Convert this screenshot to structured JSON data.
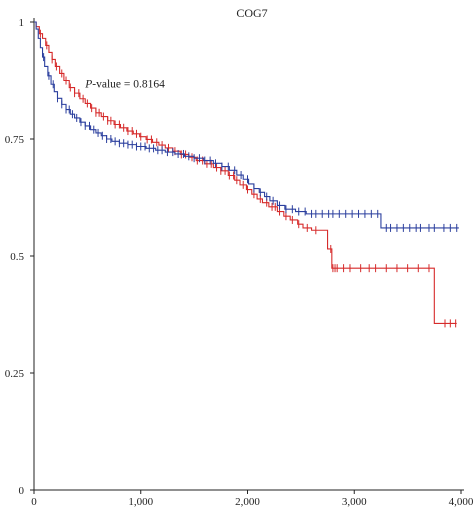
{
  "chart_data": {
    "type": "line",
    "chart_kind": "kaplan-meier survival curve",
    "title": "COG7",
    "xlabel": "",
    "ylabel": "",
    "xlim": [
      0,
      4000
    ],
    "ylim": [
      0,
      1
    ],
    "x_ticks": [
      0,
      1000,
      2000,
      3000,
      4000
    ],
    "x_tick_labels": [
      "0",
      "1,000",
      "2,000",
      "3,000",
      "4,000"
    ],
    "y_ticks": [
      0,
      0.25,
      0.5,
      0.75,
      1
    ],
    "y_tick_labels": [
      "0",
      "0.25",
      "0.5",
      "0.75",
      "1"
    ],
    "grid": false,
    "legend": "none",
    "annotation": {
      "italic": "P",
      "text": "-value = 0.8164",
      "at": [
        480,
        0.86
      ]
    },
    "series": [
      {
        "color": "#d62a2a",
        "step_points": [
          [
            0,
            1.0
          ],
          [
            20,
            0.99
          ],
          [
            50,
            0.975
          ],
          [
            80,
            0.965
          ],
          [
            110,
            0.95
          ],
          [
            140,
            0.935
          ],
          [
            170,
            0.92
          ],
          [
            200,
            0.905
          ],
          [
            240,
            0.89
          ],
          [
            280,
            0.875
          ],
          [
            330,
            0.86
          ],
          [
            380,
            0.848
          ],
          [
            430,
            0.836
          ],
          [
            480,
            0.826
          ],
          [
            530,
            0.816
          ],
          [
            580,
            0.806
          ],
          [
            630,
            0.798
          ],
          [
            690,
            0.789
          ],
          [
            750,
            0.781
          ],
          [
            810,
            0.774
          ],
          [
            870,
            0.767
          ],
          [
            930,
            0.761
          ],
          [
            990,
            0.755
          ],
          [
            1050,
            0.749
          ],
          [
            1110,
            0.743
          ],
          [
            1170,
            0.737
          ],
          [
            1230,
            0.731
          ],
          [
            1300,
            0.724
          ],
          [
            1370,
            0.717
          ],
          [
            1450,
            0.711
          ],
          [
            1520,
            0.704
          ],
          [
            1600,
            0.697
          ],
          [
            1680,
            0.689
          ],
          [
            1750,
            0.682
          ],
          [
            1820,
            0.672
          ],
          [
            1880,
            0.662
          ],
          [
            1930,
            0.652
          ],
          [
            1990,
            0.642
          ],
          [
            2040,
            0.632
          ],
          [
            2090,
            0.622
          ],
          [
            2140,
            0.614
          ],
          [
            2200,
            0.605
          ],
          [
            2280,
            0.595
          ],
          [
            2340,
            0.585
          ],
          [
            2400,
            0.577
          ],
          [
            2470,
            0.568
          ],
          [
            2520,
            0.56
          ],
          [
            2600,
            0.555
          ],
          [
            2700,
            0.555
          ],
          [
            2750,
            0.515
          ],
          [
            2790,
            0.474
          ],
          [
            3000,
            0.474
          ],
          [
            3750,
            0.474
          ],
          [
            3750,
            0.356
          ],
          [
            3960,
            0.356
          ]
        ],
        "censor_x": [
          60,
          120,
          170,
          210,
          260,
          300,
          340,
          380,
          420,
          460,
          500,
          540,
          580,
          610,
          650,
          690,
          720,
          760,
          800,
          840,
          880,
          920,
          960,
          1000,
          1060,
          1100,
          1150,
          1200,
          1260,
          1320,
          1380,
          1420,
          1480,
          1530,
          1580,
          1620,
          1660,
          1710,
          1750,
          1790,
          1830,
          1870,
          1900,
          1960,
          2000,
          2060,
          2120,
          2180,
          2230,
          2260,
          2300,
          2360,
          2420,
          2480,
          2560,
          2640,
          2780,
          2800,
          2820,
          2840,
          2900,
          2960,
          3060,
          3140,
          3200,
          3300,
          3400,
          3500,
          3600,
          3700,
          3850,
          3900,
          3950
        ]
      },
      {
        "color": "#2b3f9e",
        "step_points": [
          [
            0,
            1.0
          ],
          [
            20,
            0.985
          ],
          [
            40,
            0.965
          ],
          [
            60,
            0.945
          ],
          [
            80,
            0.925
          ],
          [
            100,
            0.905
          ],
          [
            130,
            0.885
          ],
          [
            160,
            0.867
          ],
          [
            190,
            0.851
          ],
          [
            220,
            0.837
          ],
          [
            260,
            0.824
          ],
          [
            300,
            0.813
          ],
          [
            340,
            0.803
          ],
          [
            380,
            0.795
          ],
          [
            430,
            0.786
          ],
          [
            480,
            0.778
          ],
          [
            530,
            0.77
          ],
          [
            580,
            0.763
          ],
          [
            630,
            0.757
          ],
          [
            680,
            0.75
          ],
          [
            730,
            0.745
          ],
          [
            800,
            0.741
          ],
          [
            880,
            0.738
          ],
          [
            960,
            0.734
          ],
          [
            1050,
            0.73
          ],
          [
            1140,
            0.726
          ],
          [
            1230,
            0.722
          ],
          [
            1320,
            0.718
          ],
          [
            1410,
            0.713
          ],
          [
            1500,
            0.709
          ],
          [
            1590,
            0.704
          ],
          [
            1680,
            0.698
          ],
          [
            1760,
            0.691
          ],
          [
            1830,
            0.683
          ],
          [
            1900,
            0.673
          ],
          [
            1960,
            0.664
          ],
          [
            2010,
            0.654
          ],
          [
            2060,
            0.644
          ],
          [
            2110,
            0.636
          ],
          [
            2160,
            0.627
          ],
          [
            2210,
            0.618
          ],
          [
            2280,
            0.608
          ],
          [
            2350,
            0.6
          ],
          [
            2450,
            0.595
          ],
          [
            2550,
            0.59
          ],
          [
            3000,
            0.59
          ],
          [
            3250,
            0.59
          ],
          [
            3250,
            0.56
          ],
          [
            3980,
            0.56
          ]
        ],
        "censor_x": [
          90,
          140,
          180,
          220,
          260,
          300,
          330,
          360,
          400,
          440,
          480,
          520,
          560,
          600,
          640,
          680,
          720,
          760,
          800,
          840,
          880,
          920,
          960,
          1000,
          1040,
          1080,
          1120,
          1160,
          1200,
          1250,
          1300,
          1350,
          1400,
          1450,
          1500,
          1550,
          1600,
          1650,
          1700,
          1760,
          1820,
          1880,
          1940,
          2000,
          2060,
          2120,
          2180,
          2240,
          2300,
          2360,
          2420,
          2480,
          2540,
          2600,
          2640,
          2700,
          2760,
          2800,
          2860,
          2920,
          2980,
          3040,
          3100,
          3160,
          3220,
          3300,
          3340,
          3400,
          3460,
          3520,
          3580,
          3620,
          3700,
          3750,
          3840,
          3900,
          3960
        ]
      }
    ]
  }
}
